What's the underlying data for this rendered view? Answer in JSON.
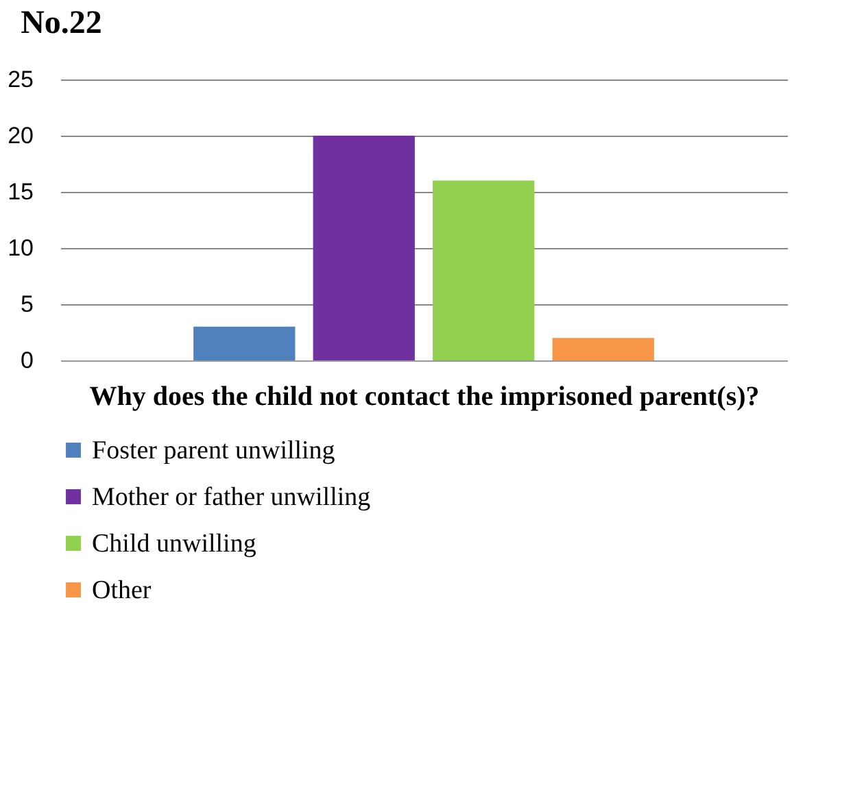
{
  "chart_data": {
    "type": "bar",
    "title": "No.22",
    "xlabel": "Why does the child not contact the imprisoned parent(s)?",
    "categories": [
      null
    ],
    "series": [
      {
        "name": "Foster parent unwilling",
        "color": "#4f81bd",
        "values": [
          3
        ]
      },
      {
        "name": "Mother or father unwilling",
        "color": "#7030a0",
        "values": [
          20
        ]
      },
      {
        "name": "Child unwilling",
        "color": "#92d050",
        "values": [
          16
        ]
      },
      {
        "name": "Other",
        "color": "#f79646",
        "values": [
          2
        ]
      }
    ],
    "ylim": [
      0,
      25
    ],
    "yticks": [
      0,
      5,
      10,
      15,
      20,
      25
    ],
    "grid": "y",
    "legend": "bottom"
  }
}
